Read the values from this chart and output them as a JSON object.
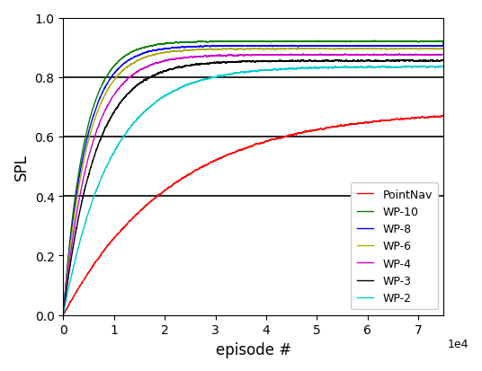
{
  "title": "",
  "xlabel": "episode #",
  "ylabel": "SPL",
  "xlim": [
    0,
    75000
  ],
  "ylim": [
    0.0,
    1.0
  ],
  "xticks": [
    0,
    10000,
    20000,
    30000,
    40000,
    50000,
    60000,
    70000
  ],
  "yticks": [
    0.0,
    0.2,
    0.4,
    0.6,
    0.8,
    1.0
  ],
  "hlines": [
    0.4,
    0.6,
    0.8
  ],
  "series": [
    {
      "label": "PointNav",
      "color": "#ff0000",
      "plateau": 0.69,
      "rise": 3.5,
      "noise": 0.018,
      "smooth": 400
    },
    {
      "label": "WP-10",
      "color": "#008000",
      "plateau": 0.92,
      "rise": 18.0,
      "noise": 0.01,
      "smooth": 300
    },
    {
      "label": "WP-8",
      "color": "#0000ff",
      "plateau": 0.905,
      "rise": 17.0,
      "noise": 0.01,
      "smooth": 300
    },
    {
      "label": "WP-6",
      "color": "#aaaa00",
      "plateau": 0.895,
      "rise": 16.0,
      "noise": 0.01,
      "smooth": 300
    },
    {
      "label": "WP-4",
      "color": "#cc00cc",
      "plateau": 0.875,
      "rise": 14.0,
      "noise": 0.012,
      "smooth": 300
    },
    {
      "label": "WP-3",
      "color": "#000000",
      "plateau": 0.855,
      "rise": 12.0,
      "noise": 0.014,
      "smooth": 250
    },
    {
      "label": "WP-2",
      "color": "#00cccc",
      "plateau": 0.835,
      "rise": 8.0,
      "noise": 0.014,
      "smooth": 300
    }
  ],
  "legend_loc": "lower right",
  "n_episodes": 75000
}
